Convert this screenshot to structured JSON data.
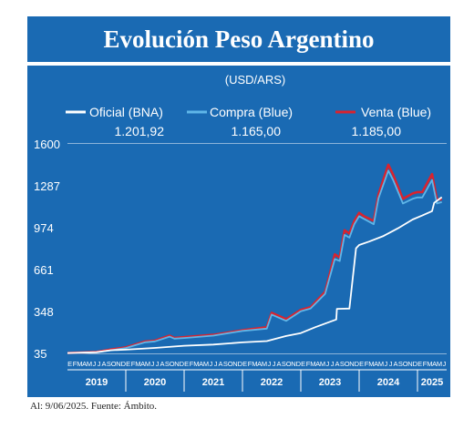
{
  "title": "Evolución Peso Argentino",
  "footnote": "Al: 9/06/2025. Fuente: Ámbito.",
  "chart_data": {
    "type": "line",
    "unit_label": "(USD/ARS)",
    "y_ticks": [
      35,
      348,
      661,
      974,
      1287,
      1600
    ],
    "ylim": [
      35,
      1600
    ],
    "x_year_labels": [
      "2019",
      "2020",
      "2021",
      "2022",
      "2023",
      "2024",
      "2025"
    ],
    "x_month_letters": [
      "E",
      "F",
      "M",
      "A",
      "M",
      "J",
      "J",
      "A",
      "S",
      "O",
      "N",
      "D"
    ],
    "x_range": [
      "2019-01",
      "2025-06"
    ],
    "grid": true,
    "legend_position": "top",
    "colors": {
      "oficial": "#ffffff",
      "compra": "#5fb6e8",
      "venta": "#d9232e",
      "background": "#1a6ab3"
    },
    "series": [
      {
        "name": "Oficial (BNA)",
        "last_value": "1.201,92",
        "x": [
          "2019-01",
          "2019-07",
          "2019-10",
          "2020-01",
          "2020-07",
          "2021-01",
          "2021-07",
          "2022-01",
          "2022-06",
          "2022-10",
          "2023-01",
          "2023-04",
          "2023-07",
          "2023-08-10",
          "2023-08-14",
          "2023-11",
          "2023-12-12",
          "2024-01",
          "2024-03",
          "2024-06",
          "2024-09",
          "2024-12",
          "2025-02",
          "2025-04",
          "2025-04-14",
          "2025-06"
        ],
        "values": [
          38,
          44,
          59,
          63,
          76,
          92,
          101,
          117,
          127,
          165,
          187,
          231,
          271,
          288,
          368,
          370,
          820,
          845,
          870,
          912,
          970,
          1035,
          1065,
          1098,
          1160,
          1201.92
        ]
      },
      {
        "name": "Compra (Blue)",
        "last_value": "1.165,00",
        "x": [
          "2019-01",
          "2019-07",
          "2019-10",
          "2020-01",
          "2020-05",
          "2020-07",
          "2020-10",
          "2020-11",
          "2021-01",
          "2021-07",
          "2022-01",
          "2022-06",
          "2022-07",
          "2022-10",
          "2023-01",
          "2023-03",
          "2023-06",
          "2023-08",
          "2023-09",
          "2023-10",
          "2023-11",
          "2023-12",
          "2024-01",
          "2024-02",
          "2024-04",
          "2024-05",
          "2024-07",
          "2024-08",
          "2024-10",
          "2024-12",
          "2025-01",
          "2025-02",
          "2025-04",
          "2025-05",
          "2025-06"
        ],
        "values": [
          37,
          43,
          59,
          75,
          118,
          125,
          160,
          145,
          150,
          168,
          203,
          220,
          325,
          278,
          350,
          370,
          480,
          740,
          725,
          920,
          900,
          1000,
          1060,
          1040,
          1000,
          1195,
          1400,
          1330,
          1155,
          1190,
          1200,
          1200,
          1330,
          1155,
          1165
        ]
      },
      {
        "name": "Venta (Blue)",
        "last_value": "1.185,00",
        "x": [
          "2019-01",
          "2019-07",
          "2019-10",
          "2020-01",
          "2020-05",
          "2020-07",
          "2020-10",
          "2020-11",
          "2021-01",
          "2021-07",
          "2022-01",
          "2022-06",
          "2022-07",
          "2022-10",
          "2023-01",
          "2023-03",
          "2023-06",
          "2023-08",
          "2023-09",
          "2023-10",
          "2023-11",
          "2023-12",
          "2024-01",
          "2024-02",
          "2024-04",
          "2024-05",
          "2024-07",
          "2024-08",
          "2024-10",
          "2024-12",
          "2025-01",
          "2025-02",
          "2025-04",
          "2025-05",
          "2025-06"
        ],
        "values": [
          38,
          46,
          64,
          80,
          124,
          130,
          168,
          150,
          156,
          174,
          208,
          230,
          338,
          290,
          360,
          380,
          495,
          775,
          750,
          955,
          930,
          1025,
          1085,
          1060,
          1025,
          1225,
          1445,
          1370,
          1190,
          1230,
          1240,
          1240,
          1375,
          1185,
          1185
        ]
      }
    ]
  }
}
